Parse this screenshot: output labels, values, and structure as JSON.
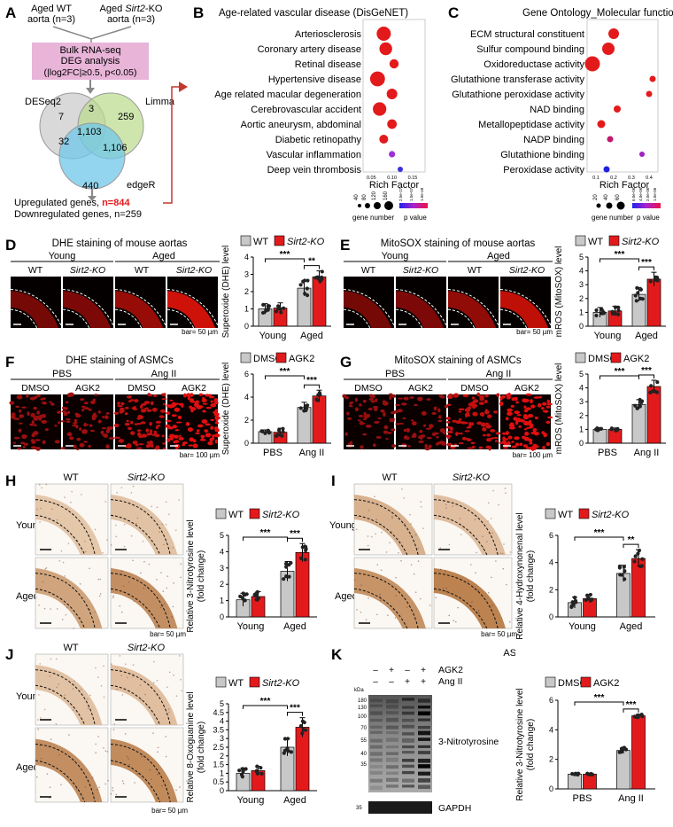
{
  "panels": {
    "A": {
      "letter": "A",
      "group1": "Aged WT aorta (n=3)",
      "group2": "Aged Sirt2-KO aorta (n=3)",
      "box_line1": "Bulk RNA-seq",
      "box_line2": "DEG analysis",
      "box_line3": "(|log2FC|≥0.5, p<0.05)",
      "venn_labels": {
        "deseq2": "DESeq2",
        "limma": "Limma",
        "edger": "edgeR"
      },
      "venn_values": {
        "deseq2_only": "7",
        "limma_only": "259",
        "edger_only": "440",
        "deseq2_limma": "3",
        "deseq2_edger": "32",
        "limma_edger": "1,106",
        "all": "1,103"
      },
      "upregulated_label": "Upregulated genes, ",
      "upregulated_value": "n=844",
      "downregulated": "Downregulated genes, n=259"
    },
    "B": {
      "letter": "B",
      "title": "Age-related vascular disease (DisGeNET)",
      "xlabel": "Rich Factor",
      "ticks": [
        "0.05",
        "0.10",
        "0.15"
      ],
      "legend_size": "gene number",
      "legend_size_values": [
        "40",
        "80",
        "120",
        "160"
      ],
      "legend_p": "p value",
      "legend_p_values": [
        "2.0e-27",
        "1.0e-07",
        "1.0e-48"
      ]
    },
    "C": {
      "letter": "C",
      "title": "Gene Ontology_Molecular function",
      "xlabel": "Rich Factor",
      "ticks": [
        "0.1",
        "0.2",
        "0.3",
        "0.4"
      ],
      "legend_size": "gene number",
      "legend_size_values": [
        "20",
        "40",
        "60"
      ],
      "legend_p": "p value",
      "legend_p_values": [
        "6.0e-06",
        "4.0e-06",
        "2.0e-06",
        "1.0e-06"
      ]
    },
    "D": {
      "letter": "D",
      "title": "DHE staining of mouse aortas",
      "age1": "Young",
      "age2": "Aged",
      "labels": [
        "WT",
        "Sirt2-KO",
        "WT",
        "Sirt2-KO"
      ],
      "bar": "bar= 50 µm"
    },
    "E": {
      "letter": "E",
      "title": "MitoSOX staining of mouse aortas",
      "age1": "Young",
      "age2": "Aged",
      "labels": [
        "WT",
        "Sirt2-KO",
        "WT",
        "Sirt2-KO"
      ],
      "bar": "bar= 50 µm"
    },
    "F": {
      "letter": "F",
      "title": "DHE staining of ASMCs",
      "cond1": "PBS",
      "cond2": "Ang II",
      "labels": [
        "DMSO",
        "AGK2",
        "DMSO",
        "AGK2"
      ],
      "bar": "bar= 100 µm"
    },
    "G": {
      "letter": "G",
      "title": "MitoSOX staining of ASMCs",
      "cond1": "PBS",
      "cond2": "Ang II",
      "labels": [
        "DMSO",
        "AGK2",
        "DMSO",
        "AGK2"
      ],
      "bar": "bar= 100 µm"
    },
    "H": {
      "letter": "H",
      "col1": "WT",
      "col2": "Sirt2-KO",
      "row1": "Young",
      "row2": "Aged",
      "bar": "bar= 50 µm"
    },
    "I": {
      "letter": "I",
      "col1": "WT",
      "col2": "Sirt2-KO",
      "row1": "Young",
      "row2": "Aged",
      "bar": "bar= 50 µm"
    },
    "J": {
      "letter": "J",
      "col1": "WT",
      "col2": "Sirt2-KO",
      "row1": "Young",
      "row2": "Aged",
      "bar": "bar= 50 µm"
    },
    "K": {
      "letter": "K",
      "header": "ASMCs",
      "agk2_label": "AGK2",
      "angii_label": "Ang II",
      "agk2_signs": [
        "–",
        "+",
        "–",
        "+"
      ],
      "angii_signs": [
        "–",
        "–",
        "+",
        "+"
      ],
      "kda_label": "kDa",
      "markers": [
        "180",
        "130",
        "100",
        "70",
        "55",
        "40",
        "35"
      ],
      "gapdh_marker": "35",
      "blot1": "3-Nitrotyrosine",
      "blot2": "GAPDH"
    }
  },
  "chart_data": [
    {
      "id": "B",
      "type": "scatter",
      "title": "Age-related vascular disease (DisGeNET)",
      "xlabel": "Rich Factor",
      "xlim": [
        0.03,
        0.18
      ],
      "categories": [
        "Arteriosclerosis",
        "Coronary artery disease",
        "Retinal disease",
        "Hypertensive disease",
        "Age related macular degeneration",
        "Cerebrovascular accident",
        "Aortic aneurysm, abdominal",
        "Diabetic retinopathy",
        "Vascular inflammation",
        "Deep vein thrombosis"
      ],
      "x": [
        0.08,
        0.085,
        0.105,
        0.065,
        0.1,
        0.07,
        0.1,
        0.08,
        0.1,
        0.12
      ],
      "gene_number": [
        150,
        130,
        80,
        160,
        100,
        140,
        85,
        75,
        40,
        25
      ],
      "color": [
        "#e31a1c",
        "#e31a1c",
        "#e31a1c",
        "#e31a1c",
        "#e31a1c",
        "#e31a1c",
        "#e31a1c",
        "#e31a1c",
        "#9b30d9",
        "#3b30e0"
      ]
    },
    {
      "id": "C",
      "type": "scatter",
      "title": "Gene Ontology_Molecular function",
      "xlabel": "Rich Factor",
      "xlim": [
        0.05,
        0.45
      ],
      "categories": [
        "ECM structural constituent",
        "Sulfur compound binding",
        "Oxidoreductase activity",
        "Glutathione transferase activity",
        "Glutathione peroxidase activity",
        "NAD binding",
        "Metallopeptidase activity",
        "NADP binding",
        "Glutathione binding",
        "Peroxidase activity"
      ],
      "x": [
        0.2,
        0.17,
        0.08,
        0.42,
        0.4,
        0.22,
        0.13,
        0.18,
        0.36,
        0.16
      ],
      "gene_number": [
        40,
        50,
        65,
        15,
        15,
        20,
        25,
        15,
        10,
        15
      ],
      "color": [
        "#e31a1c",
        "#e31a1c",
        "#e31a1c",
        "#e31a1c",
        "#e31a1c",
        "#e31a1c",
        "#e31a1c",
        "#c0186b",
        "#a020c0",
        "#2020e0"
      ]
    },
    {
      "id": "D",
      "type": "bar",
      "ylabel": "Superoxide (DHE) level",
      "ylim": [
        0,
        4
      ],
      "yticks": [
        0,
        1,
        2,
        3,
        4
      ],
      "categories": [
        "Young",
        "Aged"
      ],
      "legend": [
        "WT",
        "Sirt2-KO"
      ],
      "legend_italic": [
        false,
        true
      ],
      "series": [
        {
          "name": "WT",
          "values": [
            1.0,
            2.2
          ],
          "errors": [
            0.3,
            0.45
          ]
        },
        {
          "name": "Sirt2-KO",
          "values": [
            1.05,
            2.85
          ],
          "errors": [
            0.3,
            0.35
          ]
        }
      ],
      "sig": [
        {
          "between": [
            "WT:Young",
            "WT:Aged"
          ],
          "label": "***"
        },
        {
          "between": [
            "WT:Aged",
            "Sirt2-KO:Aged"
          ],
          "label": "**"
        }
      ]
    },
    {
      "id": "E",
      "type": "bar",
      "ylabel": "mROS (MitoSOX) level",
      "ylim": [
        0,
        5
      ],
      "yticks": [
        0,
        1,
        2,
        3,
        4,
        5
      ],
      "categories": [
        "Young",
        "Aged"
      ],
      "legend": [
        "WT",
        "Sirt2-KO"
      ],
      "legend_italic": [
        false,
        true
      ],
      "series": [
        {
          "name": "WT",
          "values": [
            1.0,
            2.3
          ],
          "errors": [
            0.35,
            0.5
          ]
        },
        {
          "name": "Sirt2-KO",
          "values": [
            1.1,
            3.4
          ],
          "errors": [
            0.35,
            0.5
          ]
        }
      ],
      "sig": [
        {
          "between": [
            "WT:Young",
            "WT:Aged"
          ],
          "label": "***"
        },
        {
          "between": [
            "WT:Aged",
            "Sirt2-KO:Aged"
          ],
          "label": "***"
        }
      ]
    },
    {
      "id": "F",
      "type": "bar",
      "ylabel": "Superoxide (DHE) level",
      "ylim": [
        0,
        6
      ],
      "yticks": [
        0,
        2,
        4,
        6
      ],
      "categories": [
        "PBS",
        "Ang II"
      ],
      "legend": [
        "DMSO",
        "AGK2"
      ],
      "legend_italic": [
        false,
        false
      ],
      "series": [
        {
          "name": "DMSO",
          "values": [
            1.0,
            3.1
          ],
          "errors": [
            0.15,
            0.45
          ]
        },
        {
          "name": "AGK2",
          "values": [
            0.95,
            4.1
          ],
          "errors": [
            0.35,
            0.5
          ]
        }
      ],
      "sig": [
        {
          "between": [
            "DMSO:PBS",
            "DMSO:Ang II"
          ],
          "label": "***"
        },
        {
          "between": [
            "DMSO:Ang II",
            "AGK2:Ang II"
          ],
          "label": "***"
        }
      ]
    },
    {
      "id": "G",
      "type": "bar",
      "ylabel": "mROS (MitoSOX) level",
      "ylim": [
        0,
        5
      ],
      "yticks": [
        0,
        1,
        2,
        3,
        4,
        5
      ],
      "categories": [
        "PBS",
        "Ang II"
      ],
      "legend": [
        "DMSO",
        "AGK2"
      ],
      "legend_italic": [
        false,
        false
      ],
      "series": [
        {
          "name": "DMSO",
          "values": [
            1.0,
            2.8
          ],
          "errors": [
            0.1,
            0.35
          ]
        },
        {
          "name": "AGK2",
          "values": [
            1.0,
            4.1
          ],
          "errors": [
            0.1,
            0.45
          ]
        }
      ],
      "sig": [
        {
          "between": [
            "DMSO:PBS",
            "DMSO:Ang II"
          ],
          "label": "***"
        },
        {
          "between": [
            "DMSO:Ang II",
            "AGK2:Ang II"
          ],
          "label": "***"
        }
      ]
    },
    {
      "id": "H",
      "type": "bar",
      "ylabel": "Relative 3-Nitrotyrosine level (fold change)",
      "ylim": [
        0,
        5
      ],
      "yticks": [
        0,
        1,
        2,
        3,
        4,
        5
      ],
      "categories": [
        "Young",
        "Aged"
      ],
      "legend": [
        "WT",
        "Sirt2-KO"
      ],
      "legend_italic": [
        false,
        true
      ],
      "series": [
        {
          "name": "WT",
          "values": [
            1.05,
            2.8
          ],
          "errors": [
            0.4,
            0.6
          ]
        },
        {
          "name": "Sirt2-KO",
          "values": [
            1.25,
            3.95
          ],
          "errors": [
            0.3,
            0.55
          ]
        }
      ],
      "sig": [
        {
          "between": [
            "WT:Young",
            "WT:Aged"
          ],
          "label": "***"
        },
        {
          "between": [
            "WT:Aged",
            "Sirt2-KO:Aged"
          ],
          "label": "***"
        }
      ]
    },
    {
      "id": "I",
      "type": "bar",
      "ylabel": "Relative 4-Hydroxynonenal level (fold change)",
      "ylim": [
        0,
        6
      ],
      "yticks": [
        0,
        2,
        4,
        6
      ],
      "categories": [
        "Young",
        "Aged"
      ],
      "legend": [
        "WT",
        "Sirt2-KO"
      ],
      "legend_italic": [
        false,
        true
      ],
      "series": [
        {
          "name": "WT",
          "values": [
            1.05,
            3.2
          ],
          "errors": [
            0.4,
            0.6
          ]
        },
        {
          "name": "Sirt2-KO",
          "values": [
            1.35,
            4.3
          ],
          "errors": [
            0.3,
            0.65
          ]
        }
      ],
      "sig": [
        {
          "between": [
            "WT:Young",
            "WT:Aged"
          ],
          "label": "***"
        },
        {
          "between": [
            "WT:Aged",
            "Sirt2-KO:Aged"
          ],
          "label": "**"
        }
      ]
    },
    {
      "id": "J",
      "type": "bar",
      "ylabel": "Relative 8-Oxoguanine level (fold change)",
      "ylim": [
        0,
        5
      ],
      "yticks": [
        0,
        0.5,
        1,
        1.5,
        2,
        2.5,
        3,
        3.5,
        4,
        4.5,
        5
      ],
      "categories": [
        "Young",
        "Aged"
      ],
      "legend": [
        "WT",
        "Sirt2-KO"
      ],
      "legend_italic": [
        false,
        true
      ],
      "series": [
        {
          "name": "WT",
          "values": [
            1.0,
            2.5
          ],
          "errors": [
            0.3,
            0.5
          ]
        },
        {
          "name": "Sirt2-KO",
          "values": [
            1.15,
            3.65
          ],
          "errors": [
            0.25,
            0.55
          ]
        }
      ],
      "sig": [
        {
          "between": [
            "WT:Young",
            "WT:Aged"
          ],
          "label": "***"
        },
        {
          "between": [
            "WT:Aged",
            "Sirt2-KO:Aged"
          ],
          "label": "***"
        }
      ]
    },
    {
      "id": "K",
      "type": "bar",
      "ylabel": "Relative 3-Nitrotyrosine level (fold change)",
      "ylim": [
        0,
        6
      ],
      "yticks": [
        0,
        2,
        4,
        6
      ],
      "categories": [
        "PBS",
        "Ang II"
      ],
      "legend": [
        "DMSO",
        "AGK2"
      ],
      "legend_italic": [
        false,
        false
      ],
      "series": [
        {
          "name": "DMSO",
          "values": [
            1.0,
            2.6
          ],
          "errors": [
            0.05,
            0.2
          ]
        },
        {
          "name": "AGK2",
          "values": [
            1.0,
            4.95
          ],
          "errors": [
            0.05,
            0.1
          ]
        }
      ],
      "sig": [
        {
          "between": [
            "DMSO:PBS",
            "DMSO:Ang II"
          ],
          "label": "***"
        },
        {
          "between": [
            "DMSO:Ang II",
            "AGK2:Ang II"
          ],
          "label": "***"
        }
      ]
    }
  ]
}
